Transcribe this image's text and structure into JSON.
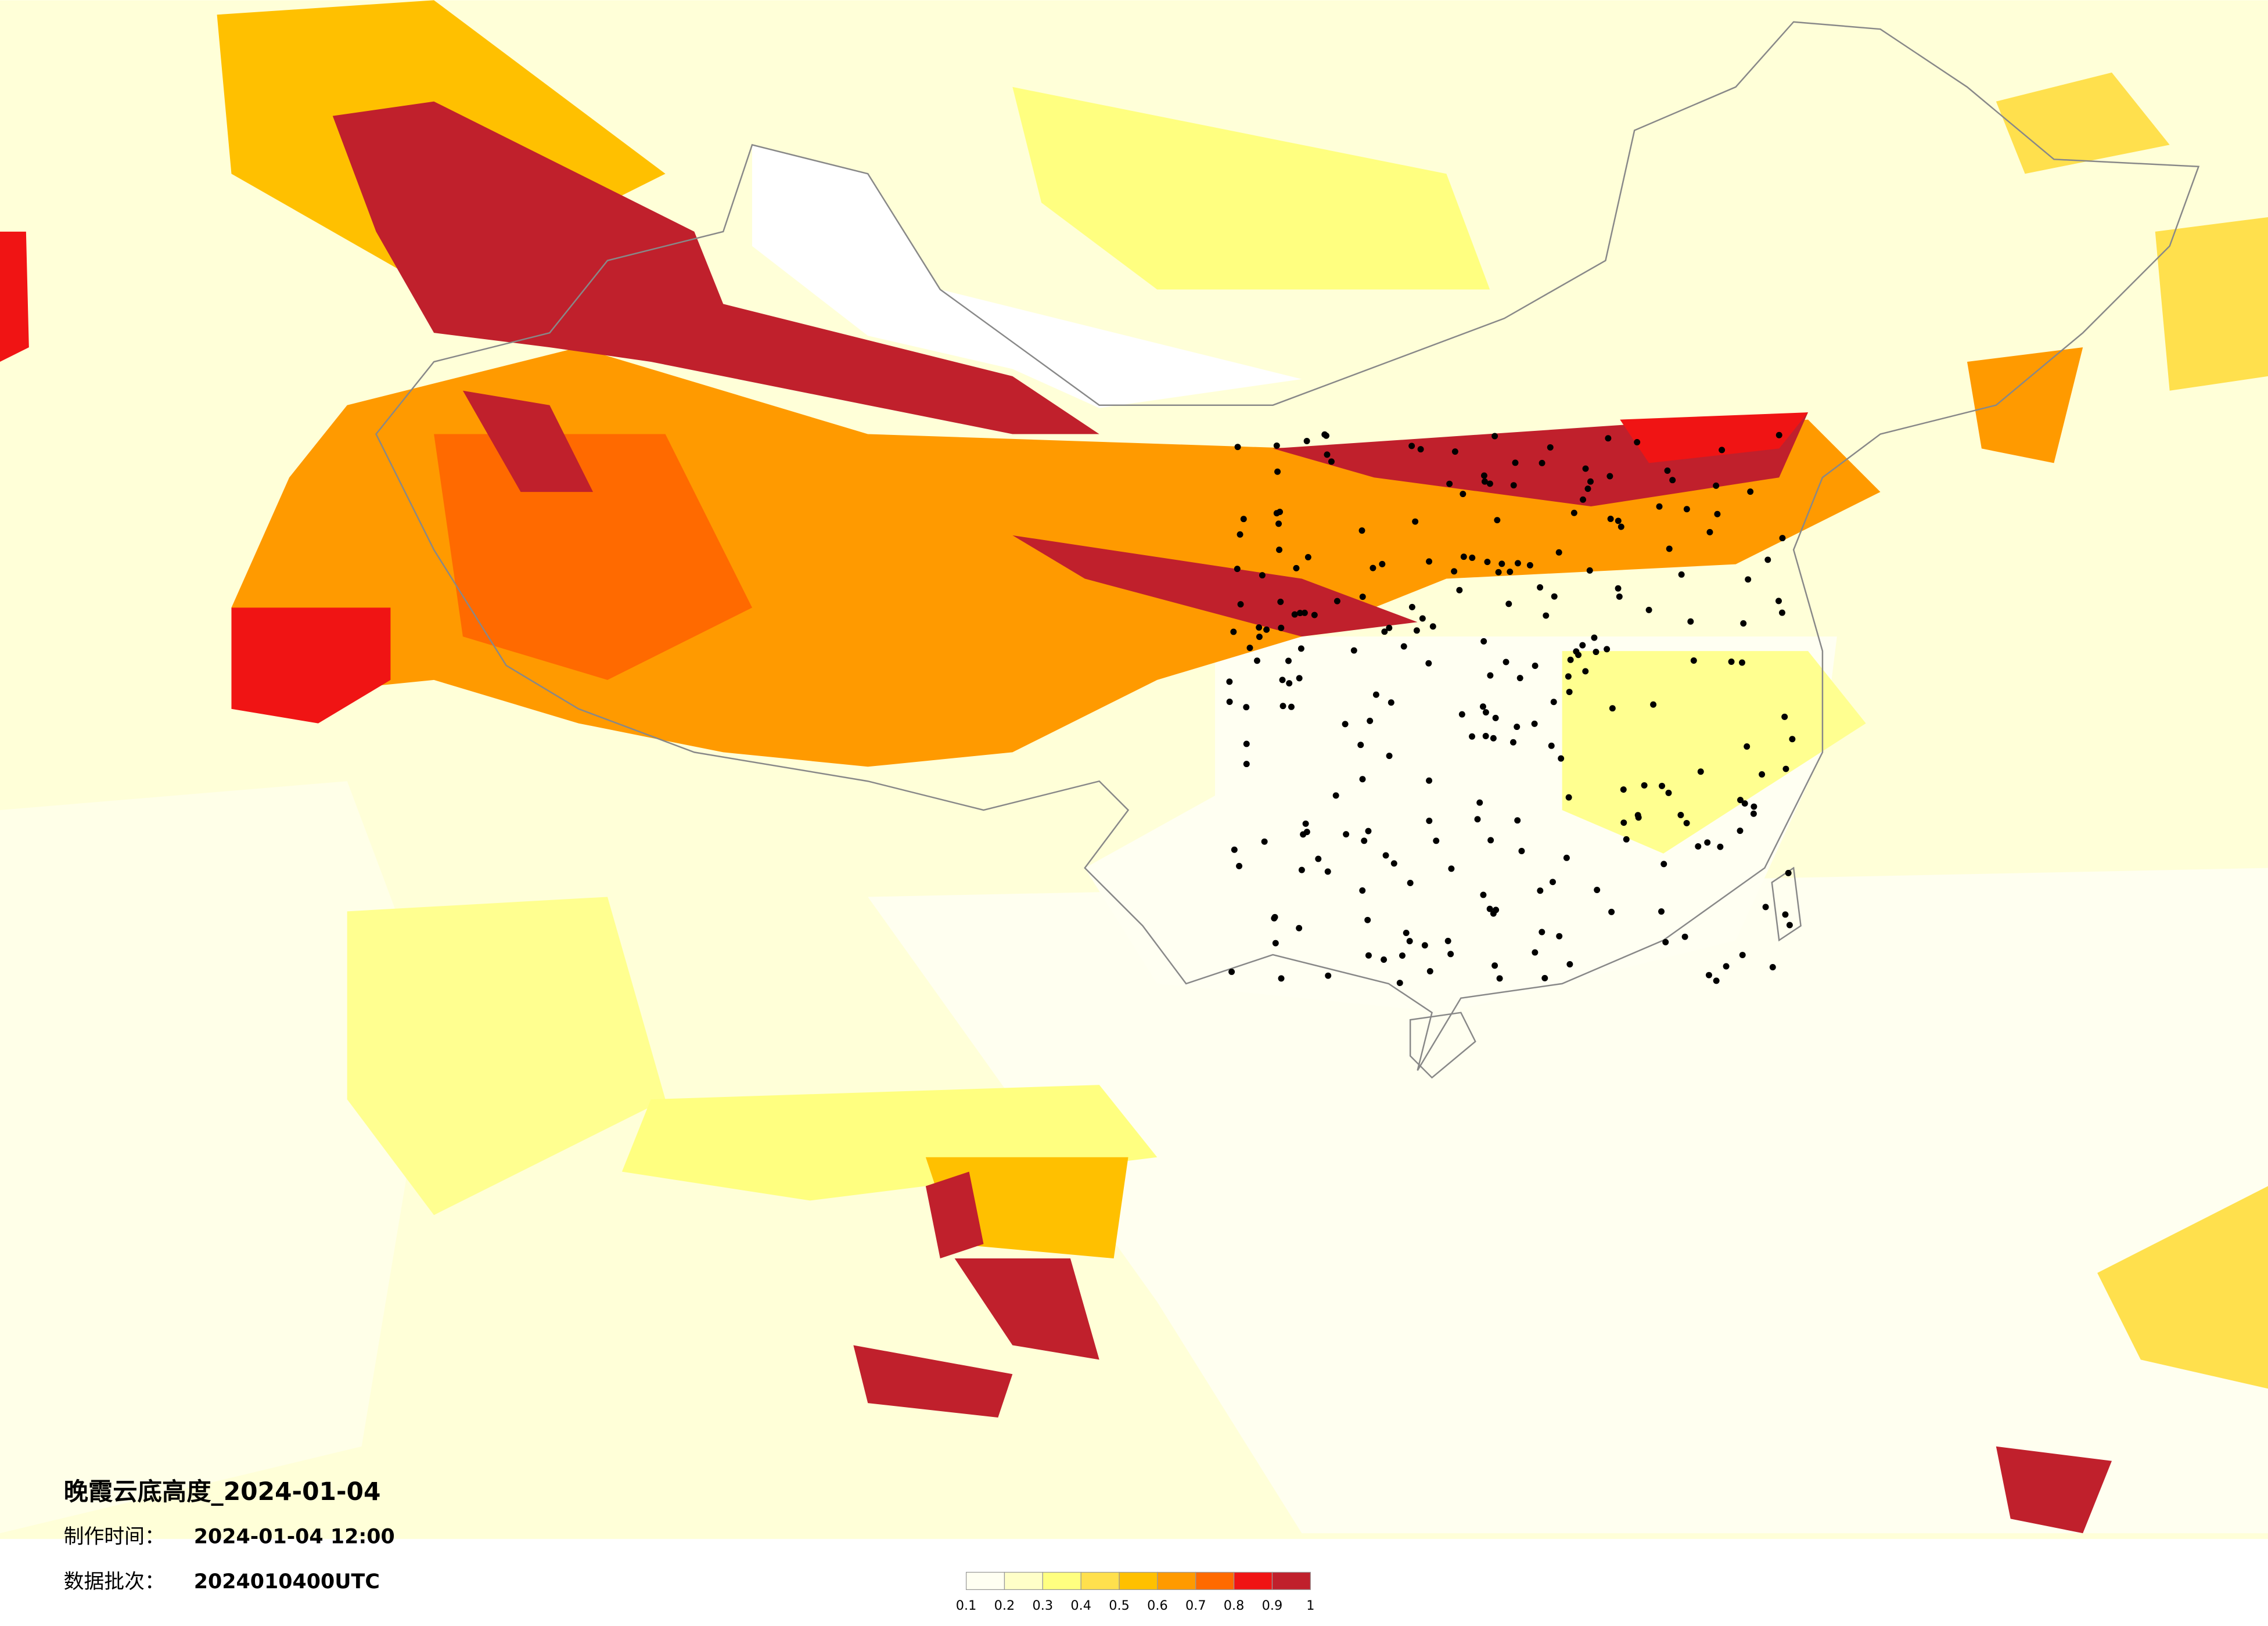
{
  "header": {
    "title": "晚霞云底高度_2024-01-04",
    "made_label": "制作时间：",
    "made_value": "2024-01-04 12:00",
    "batch_label": "数据批次：",
    "batch_value": "2024010400UTC"
  },
  "legend": {
    "ticks": [
      0.1,
      0.2,
      0.3,
      0.4,
      0.5,
      0.6,
      0.7,
      0.8,
      0.9,
      1
    ],
    "colors": [
      "#fffff2",
      "#ffffc8",
      "#ffff80",
      "#ffe04d",
      "#ffc000",
      "#ff9a00",
      "#ff6a00",
      "#f01414",
      "#c0202c"
    ]
  }
}
